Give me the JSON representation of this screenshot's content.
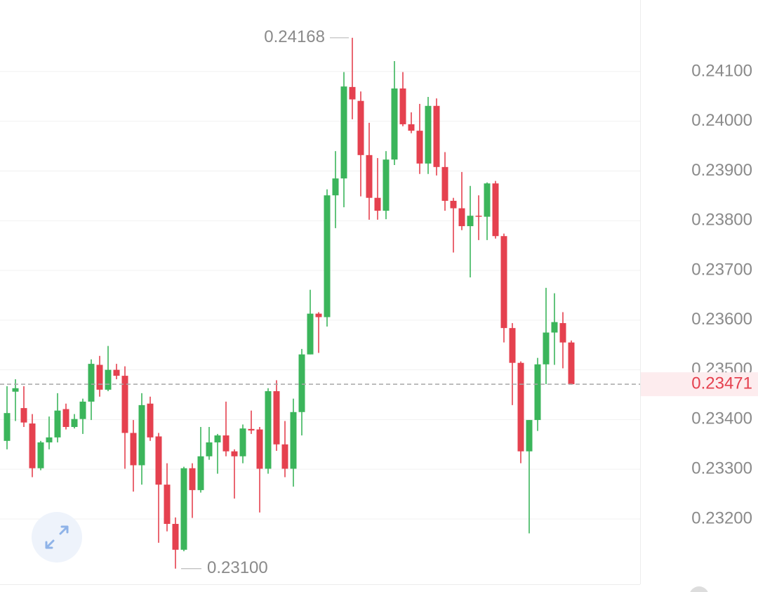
{
  "chart_data": {
    "type": "candlestick",
    "ylim": [
      0.23053,
      0.24244
    ],
    "yticks": [
      {
        "value": 0.241,
        "label": "0.24100"
      },
      {
        "value": 0.24,
        "label": "0.24000"
      },
      {
        "value": 0.239,
        "label": "0.23900"
      },
      {
        "value": 0.238,
        "label": "0.23800"
      },
      {
        "value": 0.237,
        "label": "0.23700"
      },
      {
        "value": 0.236,
        "label": "0.23600"
      },
      {
        "value": 0.235,
        "label": "0.23500"
      },
      {
        "value": 0.234,
        "label": "0.23400"
      },
      {
        "value": 0.233,
        "label": "0.23300"
      },
      {
        "value": 0.232,
        "label": "0.23200"
      }
    ],
    "grid": true,
    "up_color": "#3bb55b",
    "down_color": "#e5414f",
    "last_price": 0.23471,
    "max_marker": 0.24168,
    "min_marker": {
      "value": 0.231,
      "label": "0.23100"
    },
    "open": [
      0.23357,
      0.23456,
      0.23423,
      0.23392,
      0.23302,
      0.23354,
      0.23364,
      0.23421,
      0.23385,
      0.23401,
      0.23436,
      0.2351,
      0.2346,
      0.235,
      0.23488,
      0.23373,
      0.23308,
      0.23432,
      0.23366,
      0.23269,
      0.2319,
      0.23138,
      0.23302,
      0.23258,
      0.23326,
      0.23354,
      0.23368,
      0.23336,
      0.23326,
      0.23381,
      0.2338,
      0.23301,
      0.23457,
      0.2335,
      0.23301,
      0.23415,
      0.23531,
      0.23613,
      0.23606,
      0.23851,
      0.23885,
      0.24069,
      0.24041,
      0.23932,
      0.23846,
      0.2382,
      0.23923,
      0.24066,
      0.23994,
      0.23981,
      0.23915,
      0.24031,
      0.23908,
      0.2384,
      0.23825,
      0.23789,
      0.2381,
      0.23808,
      0.23875,
      0.23769,
      0.23584,
      0.23514,
      0.23336,
      0.23399,
      0.23511,
      0.23575,
      0.23594,
      0.23555
    ],
    "high": [
      0.23467,
      0.23481,
      0.23467,
      0.23411,
      0.23357,
      0.23406,
      0.23453,
      0.23432,
      0.23411,
      0.23442,
      0.23521,
      0.23528,
      0.23548,
      0.23512,
      0.23507,
      0.23399,
      0.23453,
      0.23446,
      0.23373,
      0.23312,
      0.23203,
      0.23305,
      0.23312,
      0.23385,
      0.23385,
      0.23371,
      0.23436,
      0.2334,
      0.2339,
      0.23418,
      0.23385,
      0.23463,
      0.23479,
      0.23397,
      0.23442,
      0.23542,
      0.23661,
      0.23616,
      0.23863,
      0.2394,
      0.24099,
      0.24168,
      0.2406,
      0.23997,
      0.23926,
      0.2394,
      0.24121,
      0.24099,
      0.24018,
      0.24035,
      0.24049,
      0.24046,
      0.23938,
      0.23846,
      0.23898,
      0.2387,
      0.23851,
      0.23877,
      0.2388,
      0.23774,
      0.23594,
      0.23517,
      0.23399,
      0.23524,
      0.23665,
      0.23654,
      0.23616,
      0.23559
    ],
    "low": [
      0.2334,
      0.23397,
      0.23385,
      0.23284,
      0.23298,
      0.2334,
      0.23354,
      0.2338,
      0.23382,
      0.23371,
      0.23399,
      0.23446,
      0.23457,
      0.23481,
      0.23301,
      0.23255,
      0.23269,
      0.23357,
      0.23152,
      0.23175,
      0.231,
      0.23135,
      0.23202,
      0.23253,
      0.23319,
      0.23291,
      0.23326,
      0.23241,
      0.23312,
      0.23371,
      0.23213,
      0.23291,
      0.23337,
      0.23284,
      0.23265,
      0.23368,
      0.23531,
      0.23534,
      0.23587,
      0.23785,
      0.23827,
      0.24004,
      0.23849,
      0.23802,
      0.23802,
      0.23803,
      0.23912,
      0.2399,
      0.23976,
      0.23894,
      0.23894,
      0.23891,
      0.2382,
      0.23736,
      0.23781,
      0.23686,
      0.23761,
      0.23761,
      0.23764,
      0.23555,
      0.23429,
      0.23312,
      0.23171,
      0.23377,
      0.23471,
      0.2351,
      0.23503,
      0.2347
    ],
    "close": [
      0.23413,
      0.23463,
      0.23394,
      0.23302,
      0.23354,
      0.23364,
      0.23418,
      0.23385,
      0.23401,
      0.23436,
      0.23512,
      0.2346,
      0.235,
      0.23488,
      0.23373,
      0.23308,
      0.23429,
      0.23364,
      0.23269,
      0.2319,
      0.23138,
      0.23302,
      0.23258,
      0.23326,
      0.23354,
      0.23368,
      0.23336,
      0.23326,
      0.23382,
      0.23378,
      0.23301,
      0.23457,
      0.2335,
      0.23301,
      0.23415,
      0.23531,
      0.23613,
      0.23606,
      0.23851,
      0.23885,
      0.2407,
      0.24044,
      0.23932,
      0.23846,
      0.2382,
      0.23923,
      0.24066,
      0.23994,
      0.23981,
      0.23915,
      0.24031,
      0.23908,
      0.2384,
      0.23825,
      0.23789,
      0.2381,
      0.23808,
      0.23875,
      0.23769,
      0.23584,
      0.23514,
      0.23336,
      0.23399,
      0.23511,
      0.23575,
      0.23596,
      0.23555,
      0.23471
    ]
  }
}
